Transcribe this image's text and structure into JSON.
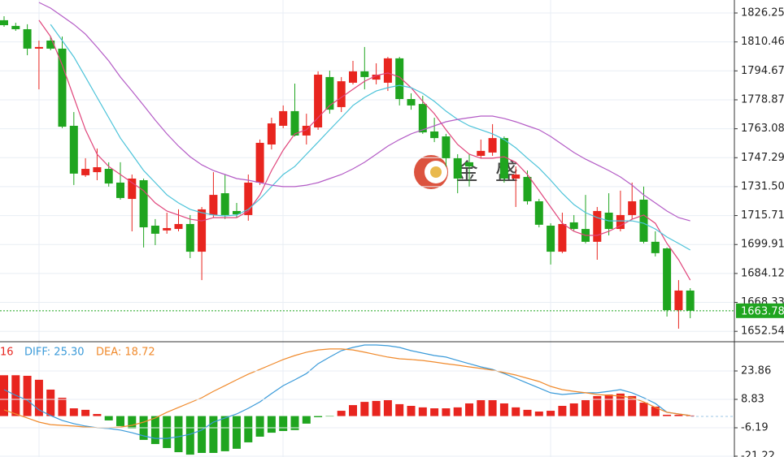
{
  "chart_data": [
    {
      "type": "candlestick",
      "colors": {
        "up": "#e8251f",
        "down": "#1fa51f"
      },
      "ohlc": [
        [
          1822.3,
          1824.5,
          1818.7,
          1819.6
        ],
        [
          1819.2,
          1820.9,
          1816.5,
          1817.4
        ],
        [
          1817.4,
          1820.1,
          1803.2,
          1806.8
        ],
        [
          1806.8,
          1811.2,
          1784.6,
          1807.7
        ],
        [
          1811.2,
          1813.4,
          1805.9,
          1806.8
        ],
        [
          1806.8,
          1813.4,
          1763.4,
          1764.2
        ],
        [
          1764.7,
          1772.2,
          1732.4,
          1738.6
        ],
        [
          1737.7,
          1747.0,
          1736.8,
          1741.2
        ],
        [
          1739.4,
          1752.3,
          1735.0,
          1742.1
        ],
        [
          1741.2,
          1744.8,
          1731.5,
          1733.2
        ],
        [
          1733.7,
          1744.8,
          1724.4,
          1725.3
        ],
        [
          1724.8,
          1738.1,
          1707.1,
          1735.9
        ],
        [
          1735.0,
          1735.9,
          1698.3,
          1709.3
        ],
        [
          1710.2,
          1713.8,
          1699.6,
          1705.8
        ],
        [
          1707.6,
          1717.3,
          1705.8,
          1708.9
        ],
        [
          1708.4,
          1719.1,
          1707.1,
          1711.1
        ],
        [
          1711.1,
          1716.0,
          1692.5,
          1696.0
        ],
        [
          1696.0,
          1720.4,
          1680.5,
          1719.1
        ],
        [
          1716.0,
          1739.4,
          1714.6,
          1727.0
        ],
        [
          1727.9,
          1738.1,
          1713.8,
          1716.0
        ],
        [
          1718.2,
          1722.6,
          1714.6,
          1716.4
        ],
        [
          1716.0,
          1738.1,
          1712.9,
          1733.7
        ],
        [
          1733.7,
          1757.2,
          1732.4,
          1755.4
        ],
        [
          1754.5,
          1769.1,
          1751.8,
          1766.0
        ],
        [
          1764.7,
          1775.8,
          1763.4,
          1772.7
        ],
        [
          1772.7,
          1787.7,
          1758.9,
          1759.4
        ],
        [
          1759.4,
          1771.3,
          1754.5,
          1764.7
        ],
        [
          1763.8,
          1794.4,
          1762.5,
          1792.6
        ],
        [
          1791.3,
          1794.8,
          1771.3,
          1773.5
        ],
        [
          1774.9,
          1791.3,
          1772.2,
          1789.0
        ],
        [
          1788.2,
          1800.1,
          1787.3,
          1794.4
        ],
        [
          1794.4,
          1807.7,
          1784.6,
          1791.3
        ],
        [
          1789.9,
          1798.8,
          1787.3,
          1792.6
        ],
        [
          1788.2,
          1802.3,
          1783.7,
          1801.5
        ],
        [
          1801.5,
          1802.3,
          1775.8,
          1779.3
        ],
        [
          1779.3,
          1782.4,
          1773.5,
          1775.8
        ],
        [
          1776.6,
          1781.1,
          1760.3,
          1761.1
        ],
        [
          1761.6,
          1769.1,
          1755.8,
          1758.0
        ],
        [
          1758.9,
          1760.3,
          1742.5,
          1747.0
        ],
        [
          1747.0,
          1749.2,
          1727.9,
          1735.9
        ],
        [
          1744.8,
          1749.2,
          1731.5,
          1742.5
        ],
        [
          1748.3,
          1757.2,
          1747.0,
          1751.0
        ],
        [
          1750.1,
          1765.6,
          1748.3,
          1758.0
        ],
        [
          1758.0,
          1758.9,
          1733.7,
          1735.9
        ],
        [
          1735.9,
          1742.5,
          1720.4,
          1738.1
        ],
        [
          1736.8,
          1740.3,
          1721.7,
          1723.5
        ],
        [
          1723.5,
          1724.8,
          1709.3,
          1710.7
        ],
        [
          1710.2,
          1711.5,
          1689.0,
          1696.0
        ],
        [
          1696.0,
          1717.3,
          1695.2,
          1711.1
        ],
        [
          1712.0,
          1716.0,
          1707.6,
          1708.4
        ],
        [
          1708.4,
          1727.0,
          1700.5,
          1701.4
        ],
        [
          1701.4,
          1720.4,
          1691.6,
          1718.2
        ],
        [
          1717.3,
          1727.9,
          1704.9,
          1708.4
        ],
        [
          1708.4,
          1729.3,
          1707.1,
          1716.0
        ],
        [
          1716.0,
          1733.7,
          1713.8,
          1723.5
        ],
        [
          1724.4,
          1731.5,
          1700.5,
          1701.4
        ],
        [
          1701.4,
          1707.1,
          1693.4,
          1695.2
        ],
        [
          1697.8,
          1698.3,
          1660.6,
          1664.1
        ],
        [
          1664.1,
          1680.5,
          1654.0,
          1674.8
        ],
        [
          1674.8,
          1676.1,
          1659.7,
          1663.8
        ]
      ],
      "lines": [
        {
          "color": "#e0457b",
          "values": [
            null,
            null,
            null,
            1822.3,
            1813.4,
            1797.9,
            1780.2,
            1762.5,
            1749.2,
            1742.5,
            1738.1,
            1733.7,
            1729.3,
            1722.6,
            1718.2,
            1716.0,
            1713.7,
            1712.8,
            1714.6,
            1714.6,
            1714.6,
            1718.2,
            1727.0,
            1740.3,
            1751.4,
            1760.3,
            1762.5,
            1769.1,
            1775.8,
            1780.2,
            1784.6,
            1789.0,
            1792.1,
            1793.5,
            1791.3,
            1785.5,
            1778.0,
            1771.3,
            1762.5,
            1754.5,
            1749.2,
            1747.0,
            1747.0,
            1747.8,
            1744.8,
            1738.1,
            1729.3,
            1720.4,
            1711.5,
            1707.1,
            1704.9,
            1704.9,
            1707.1,
            1710.2,
            1713.7,
            1716.0,
            1711.5,
            1700.5,
            1691.6,
            1680.5
          ]
        },
        {
          "color": "#4cc3d9",
          "values": [
            null,
            null,
            null,
            null,
            1820.0,
            1811.2,
            1802.3,
            1791.3,
            1780.2,
            1769.1,
            1758.0,
            1749.2,
            1740.3,
            1733.7,
            1727.0,
            1722.6,
            1719.1,
            1717.3,
            1716.0,
            1715.5,
            1716.0,
            1719.1,
            1724.8,
            1731.5,
            1738.1,
            1742.5,
            1749.2,
            1755.8,
            1762.5,
            1769.1,
            1775.8,
            1780.2,
            1783.7,
            1785.5,
            1786.8,
            1785.5,
            1782.4,
            1778.0,
            1772.7,
            1768.2,
            1764.7,
            1762.5,
            1760.3,
            1757.2,
            1752.7,
            1747.0,
            1741.6,
            1735.0,
            1727.9,
            1721.7,
            1717.3,
            1714.6,
            1712.8,
            1712.8,
            1712.8,
            1711.5,
            1708.4,
            1704.0,
            1700.5,
            1696.9
          ]
        },
        {
          "color": "#b45cc6",
          "values": [
            null,
            null,
            null,
            1832.0,
            1828.9,
            1824.5,
            1820.0,
            1814.7,
            1807.6,
            1800.1,
            1791.3,
            1783.7,
            1775.8,
            1767.8,
            1760.3,
            1753.6,
            1747.8,
            1743.4,
            1740.3,
            1738.1,
            1735.9,
            1735.0,
            1733.7,
            1732.3,
            1731.5,
            1731.5,
            1732.3,
            1733.7,
            1735.9,
            1738.1,
            1741.2,
            1744.8,
            1749.2,
            1753.6,
            1757.2,
            1760.3,
            1762.5,
            1764.7,
            1766.9,
            1768.2,
            1769.1,
            1770.0,
            1770.0,
            1768.7,
            1766.9,
            1764.7,
            1762.5,
            1758.9,
            1754.5,
            1750.1,
            1746.5,
            1743.4,
            1740.3,
            1736.8,
            1732.3,
            1727.0,
            1722.6,
            1718.2,
            1714.6,
            1712.8
          ]
        }
      ],
      "ylim": [
        1647.31,
        1833.34
      ],
      "yticks": [
        1826.25,
        1810.46,
        1794.67,
        1778.87,
        1763.08,
        1747.29,
        {
          "value": 1731.5,
          "label": "1731.50"
        },
        1715.71,
        1699.91,
        1684.12,
        1668.33,
        1652.54
      ],
      "grid": true,
      "last_price": 1663.78,
      "last_price_color": "#1fa51f",
      "watermark": "金 盛"
    },
    {
      "type": "macd",
      "legend": [
        {
          "text": "16",
          "color": "#e8251f"
        },
        {
          "text": "DIFF: 25.30",
          "color": "#3a9ad9"
        },
        {
          "text": "DEA: 18.72",
          "color": "#f08a2c"
        }
      ],
      "colors": {
        "up": "#e8251f",
        "down": "#1fa51f"
      },
      "values": [
        21.6,
        21.6,
        21.3,
        19.2,
        14.0,
        9.7,
        4.1,
        3.3,
        1.1,
        -2.3,
        -5.3,
        -6.6,
        -12.6,
        -14.8,
        -16.9,
        -19.1,
        -20.4,
        -19.5,
        -19.5,
        -18.6,
        -17.3,
        -13.9,
        -10.9,
        -8.8,
        -7.9,
        -7.4,
        -4.0,
        -0.6,
        -0.2,
        2.8,
        5.8,
        7.5,
        8.0,
        8.4,
        6.3,
        5.4,
        4.6,
        4.1,
        4.1,
        4.6,
        6.7,
        8.4,
        8.4,
        6.7,
        4.6,
        3.3,
        2.4,
        2.8,
        5.4,
        6.7,
        8.4,
        10.6,
        11.4,
        11.9,
        10.6,
        7.1,
        5.0,
        0.7,
        0.7,
        0.3
      ],
      "lines": [
        {
          "color": "#3a9ad9",
          "values": [
            14.0,
            11.0,
            8.4,
            3.3,
            0.3,
            -2.3,
            -4.0,
            -5.3,
            -6.2,
            -6.6,
            -7.4,
            -8.8,
            -10.5,
            -11.8,
            -11.8,
            -10.9,
            -9.6,
            -7.4,
            -3.2,
            -1.0,
            1.1,
            4.1,
            7.5,
            11.9,
            16.1,
            19.2,
            22.5,
            27.7,
            31.2,
            34.6,
            36.3,
            37.6,
            37.6,
            37.2,
            36.3,
            34.6,
            33.3,
            32.0,
            31.2,
            29.4,
            27.7,
            26.0,
            24.7,
            22.5,
            20.0,
            17.4,
            14.9,
            12.3,
            11.4,
            11.9,
            12.3,
            12.3,
            13.1,
            14.0,
            12.3,
            9.7,
            6.7,
            2.0,
            1.1,
            0.3
          ]
        },
        {
          "color": "#f08a2c",
          "values": [
            3.3,
            1.1,
            -1.0,
            -3.2,
            -4.5,
            -4.9,
            -5.3,
            -5.8,
            -6.2,
            -6.2,
            -5.8,
            -4.9,
            -3.2,
            -1.0,
            2.0,
            4.6,
            7.1,
            9.7,
            13.1,
            16.1,
            19.2,
            22.2,
            24.7,
            27.3,
            29.9,
            32.0,
            33.8,
            35.0,
            35.5,
            35.5,
            35.0,
            33.8,
            32.5,
            31.2,
            30.3,
            29.9,
            29.4,
            28.6,
            27.7,
            26.9,
            26.0,
            25.2,
            24.3,
            23.0,
            21.7,
            20.0,
            18.3,
            15.7,
            14.0,
            13.1,
            12.3,
            11.4,
            11.0,
            10.6,
            9.7,
            7.5,
            4.6,
            2.0,
            1.1,
            0.3
          ]
        }
      ],
      "ylim": [
        -21.65,
        39.32
      ],
      "yticks": [
        23.86,
        8.83,
        -6.19,
        -21.22
      ]
    }
  ]
}
